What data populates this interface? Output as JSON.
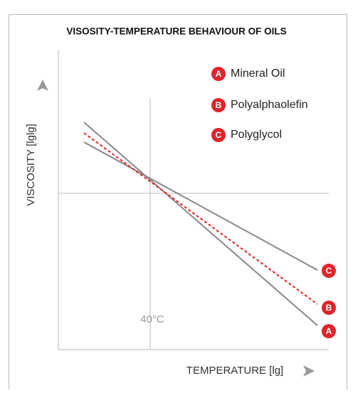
{
  "title": "VISOSITY-TEMPERATURE BEHAVIOUR OF OILS",
  "y_axis_label": "VISCOSITY [lglg]",
  "x_axis_label": "TEMPERATURE [lg]",
  "reference_label": "40°C",
  "legend": [
    {
      "letter": "A",
      "label": "Mineral Oil"
    },
    {
      "letter": "B",
      "label": "Polyalphaolefin"
    },
    {
      "letter": "C",
      "label": "Polyglycol"
    }
  ]
}
